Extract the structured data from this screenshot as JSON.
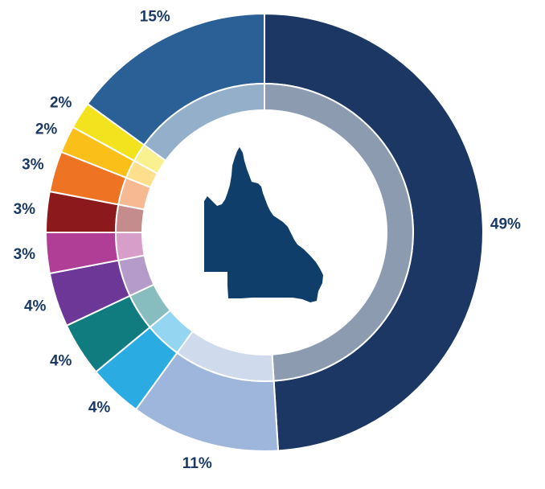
{
  "chart_data": {
    "type": "pie",
    "style": "donut",
    "start_position": "top, clockwise",
    "slices": [
      {
        "value": 49,
        "label": "49%",
        "color": "#1c3764"
      },
      {
        "value": 11,
        "label": "11%",
        "color": "#9fb6dc"
      },
      {
        "value": 4,
        "label": "4%",
        "color": "#2aace3"
      },
      {
        "value": 4,
        "label": "4%",
        "color": "#117c80"
      },
      {
        "value": 4,
        "label": "4%",
        "color": "#6c3796"
      },
      {
        "value": 3,
        "label": "3%",
        "color": "#b03d96"
      },
      {
        "value": 3,
        "label": "3%",
        "color": "#8c1a1c"
      },
      {
        "value": 3,
        "label": "3%",
        "color": "#ee7424"
      },
      {
        "value": 2,
        "label": "2%",
        "color": "#fbbf1a"
      },
      {
        "value": 2,
        "label": "2%",
        "color": "#f3e31f"
      },
      {
        "value": 15,
        "label": "15%",
        "color": "#2a6095"
      }
    ],
    "center_graphic": "queensland-map-icon",
    "center_graphic_color": "#0f3e6b",
    "label_color": "#1b3a63"
  }
}
